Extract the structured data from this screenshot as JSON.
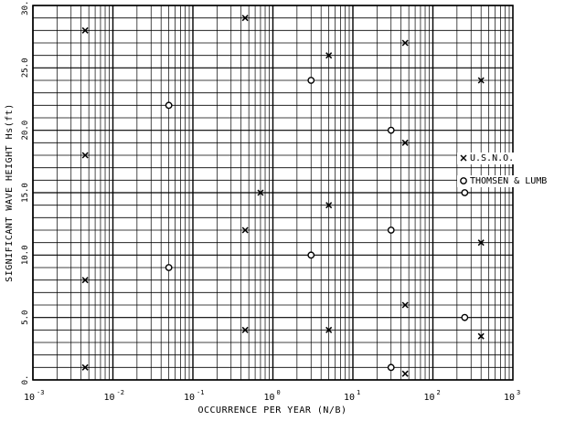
{
  "chart_data": {
    "type": "scatter",
    "title": "",
    "xlabel": "OCCURRENCE PER YEAR (N/B)",
    "ylabel": "SIGNIFICANT WAVE HEIGHT Hs(ft)",
    "xscale": "log",
    "xlim": [
      0.001,
      1000
    ],
    "ylim": [
      0,
      30
    ],
    "grid": true,
    "x_tick_labels": [
      {
        "base": "10",
        "exp": "-3"
      },
      {
        "base": "10",
        "exp": "-2"
      },
      {
        "base": "10",
        "exp": "-1"
      },
      {
        "base": "10",
        "exp": "0"
      },
      {
        "base": "10",
        "exp": "1"
      },
      {
        "base": "10",
        "exp": "2"
      },
      {
        "base": "10",
        "exp": "3"
      }
    ],
    "y_tick_labels": [
      "0.",
      "5.0",
      "10.0",
      "15.0",
      "20.0",
      "25.0",
      "30.0"
    ],
    "legend_position": "right",
    "legend": [
      {
        "marker": "x",
        "label": "U.S.N.O."
      },
      {
        "marker": "o",
        "label": "THOMSEN & LUMB"
      }
    ],
    "series": [
      {
        "name": "U.S.N.O.",
        "marker": "x",
        "points": [
          {
            "x": 0.7,
            "y": 15.0
          },
          {
            "x": 0.45,
            "y": 29.0
          },
          {
            "x": 0.45,
            "y": 12.0
          },
          {
            "x": 0.45,
            "y": 4.0
          },
          {
            "x": 0.0045,
            "y": 28.0
          },
          {
            "x": 0.0045,
            "y": 18.0
          },
          {
            "x": 0.0045,
            "y": 8.0
          },
          {
            "x": 0.0045,
            "y": 1.0
          },
          {
            "x": 5.0,
            "y": 26.0
          },
          {
            "x": 5.0,
            "y": 14.0
          },
          {
            "x": 5.0,
            "y": 4.0
          },
          {
            "x": 45,
            "y": 27.0
          },
          {
            "x": 45,
            "y": 19.0
          },
          {
            "x": 45,
            "y": 6.0
          },
          {
            "x": 45,
            "y": 0.5
          },
          {
            "x": 400,
            "y": 24.0
          },
          {
            "x": 400,
            "y": 11.0
          },
          {
            "x": 400,
            "y": 3.5
          }
        ]
      },
      {
        "name": "THOMSEN & LUMB",
        "marker": "o",
        "points": [
          {
            "x": 0.05,
            "y": 22.0
          },
          {
            "x": 0.05,
            "y": 9.0
          },
          {
            "x": 3.0,
            "y": 24.0
          },
          {
            "x": 3.0,
            "y": 10.0
          },
          {
            "x": 30,
            "y": 20.0
          },
          {
            "x": 30,
            "y": 12.0
          },
          {
            "x": 30,
            "y": 1.0
          },
          {
            "x": 250,
            "y": 15.0
          },
          {
            "x": 250,
            "y": 5.0
          }
        ]
      }
    ]
  }
}
